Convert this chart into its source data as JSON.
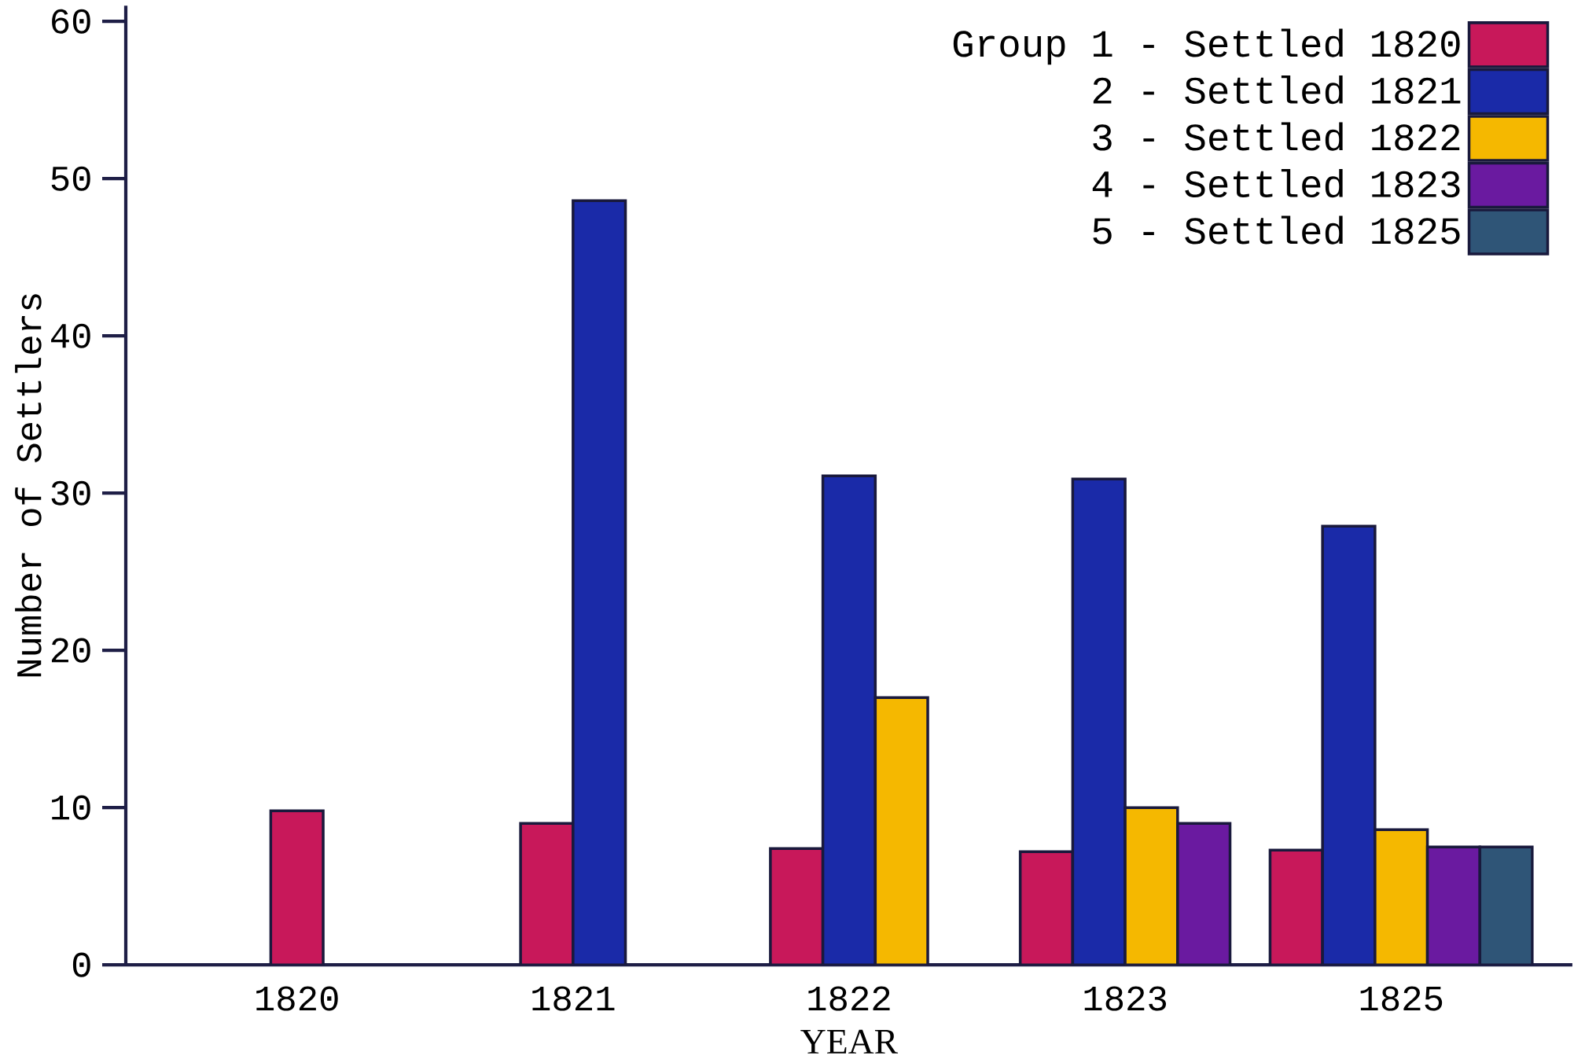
{
  "chart_data": {
    "type": "bar",
    "xlabel": "YEAR",
    "ylabel": "Number of Settlers",
    "categories": [
      "1820",
      "1821",
      "1822",
      "1823",
      "1825"
    ],
    "series": [
      {
        "name": "Group 1 - Settled 1820",
        "color": "#c8185a",
        "values": [
          9.8,
          9,
          7.4,
          7.2,
          7.3
        ]
      },
      {
        "name": "2 - Settled 1821",
        "color": "#1a2aa8",
        "values": [
          null,
          48.6,
          31.1,
          30.9,
          27.9
        ]
      },
      {
        "name": "3 - Settled 1822",
        "color": "#f5b800",
        "values": [
          null,
          null,
          17,
          10,
          8.6
        ]
      },
      {
        "name": "4 - Settled 1823",
        "color": "#6a1aa0",
        "values": [
          null,
          null,
          null,
          9,
          7.5
        ]
      },
      {
        "name": "5 - Settled 1825",
        "color": "#2f5577",
        "values": [
          null,
          null,
          null,
          null,
          7.5
        ]
      }
    ],
    "ylim": [
      0,
      61
    ],
    "yticks": [
      0,
      10,
      20,
      30,
      40,
      50,
      60
    ],
    "grid": false,
    "legend": "top right"
  }
}
